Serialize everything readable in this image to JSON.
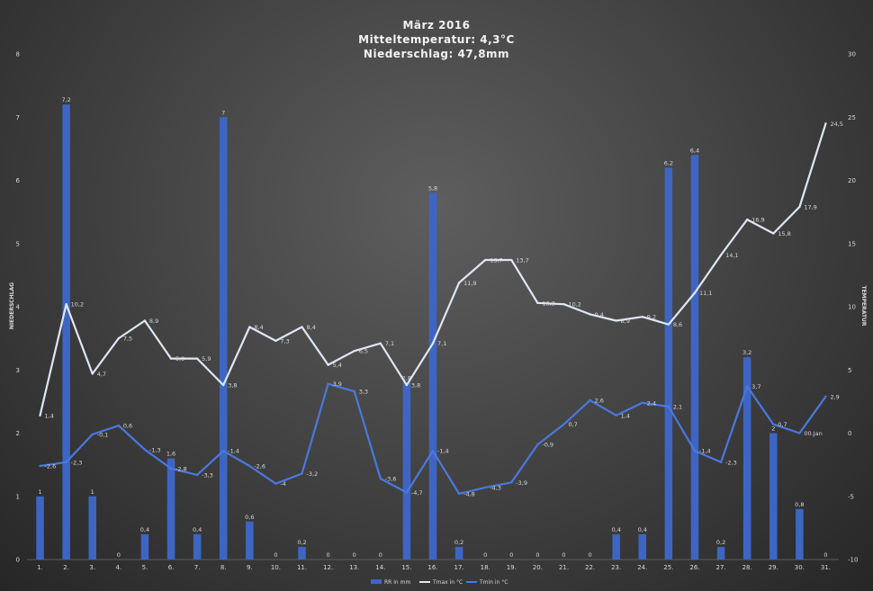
{
  "header": {
    "line1": "März 2016",
    "line2": "Mitteltemperatur: 4,3°C",
    "line3": "Niederschlag: 47,8mm"
  },
  "colors": {
    "bar": "#3d66c4",
    "tmax": "#dfe6f5",
    "tmin": "#4a78e0",
    "grid": "#5c5c5c"
  },
  "chart_data": {
    "type": "bar+line",
    "title": "März 2016",
    "subtitle": [
      "Mitteltemperatur: 4,3°C",
      "Niederschlag: 47,8mm"
    ],
    "ylabel_left": "NIEDERSCHLAG",
    "ylabel_right": "TEMPERATUR",
    "ylim_left": [
      0,
      8
    ],
    "ylim_right": [
      -10,
      30
    ],
    "yticks_left": [
      "0",
      "1",
      "2",
      "3",
      "4",
      "5",
      "6",
      "7",
      "8"
    ],
    "yticks_right": [
      "-10",
      "-5",
      "0",
      "5",
      "10",
      "15",
      "20",
      "25",
      "30"
    ],
    "categories": [
      "1.",
      "2.",
      "3.",
      "4.",
      "5.",
      "6.",
      "7.",
      "8.",
      "9.",
      "10.",
      "11.",
      "12.",
      "13.",
      "14.",
      "15.",
      "16.",
      "17.",
      "18.",
      "19.",
      "20.",
      "21.",
      "22.",
      "23.",
      "24.",
      "25.",
      "26.",
      "27.",
      "28.",
      "29.",
      "30.",
      "31."
    ],
    "series": [
      {
        "name": "RR in mm",
        "axis": "left",
        "values": [
          1,
          7.2,
          1,
          0,
          0.4,
          1.6,
          0.4,
          7,
          0.6,
          0,
          0.2,
          0,
          0,
          0,
          2.8,
          5.8,
          0.2,
          0,
          0,
          0,
          0,
          0,
          0.4,
          0.4,
          6.2,
          6.4,
          0.2,
          3.2,
          2,
          0.8,
          0
        ],
        "labels": [
          "1",
          "7,2",
          "1",
          "0",
          "0,4",
          "1,6",
          "0,4",
          "7",
          "0,6",
          "0",
          "0,2",
          "0",
          "0",
          "0",
          "2,8",
          "5,8",
          "0,2",
          "0",
          "0",
          "0",
          "0",
          "0",
          "0,4",
          "0,4",
          "6,2",
          "6,4",
          "0,2",
          "3,2",
          "2",
          "0,8",
          "0"
        ]
      },
      {
        "name": "Tmax in °C",
        "axis": "right",
        "values": [
          1.4,
          10.2,
          4.7,
          7.5,
          8.9,
          5.9,
          5.9,
          3.8,
          8.4,
          7.3,
          8.4,
          5.4,
          6.5,
          7.1,
          3.8,
          7.1,
          11.9,
          13.7,
          13.7,
          10.3,
          10.2,
          9.4,
          8.9,
          9.2,
          8.6,
          11.1,
          14.1,
          16.9,
          15.8,
          17.9,
          24.5
        ],
        "labels": [
          "1,4",
          "10,2",
          "4,7",
          "7,5",
          "8,9",
          "5,9",
          "5,9",
          "3,8",
          "8,4",
          "7,3",
          "8,4",
          "5,4",
          "6,5",
          "7,1",
          "3,8",
          "7,1",
          "11,9",
          "13,7",
          "13,7",
          "10,3",
          "10,2",
          "9,4",
          "8,9",
          "9,2",
          "8,6",
          "11,1",
          "14,1",
          "16,9",
          "15,8",
          "17,9",
          "24,5"
        ]
      },
      {
        "name": "Tmin in °C",
        "axis": "right",
        "values": [
          -2.6,
          -2.3,
          -0.1,
          0.6,
          -1.3,
          -2.8,
          -3.3,
          -1.4,
          -2.6,
          -4,
          -3.2,
          3.9,
          3.3,
          -3.6,
          -4.7,
          -1.4,
          -4.8,
          -4.3,
          -3.9,
          -0.9,
          0.7,
          2.6,
          1.4,
          2.4,
          2.1,
          -1.4,
          -2.3,
          3.7,
          0.7,
          0,
          2.9
        ],
        "labels": [
          "-2,6",
          "-2,3",
          "-0,1",
          "0,6",
          "-1,3",
          "-2,8",
          "-3,3",
          "-1,4",
          "-2,6",
          "-4",
          "-3,2",
          "3,9",
          "3,3",
          "-3,6",
          "-4,7",
          "-1,4",
          "-4,8",
          "-4,3",
          "-3,9",
          "-0,9",
          "0,7",
          "2,6",
          "1,4",
          "2,4",
          "2,1",
          "-1,4",
          "-2,3",
          "3,7",
          "0,7",
          "00.Jan",
          "2,9"
        ]
      }
    ],
    "legend_position": "bottom",
    "grid": false
  }
}
